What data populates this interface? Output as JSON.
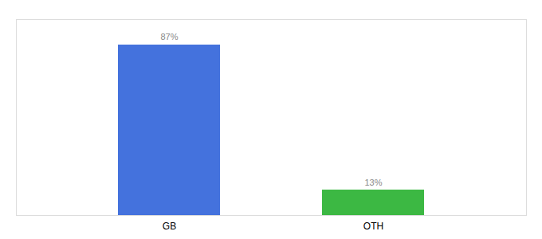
{
  "chart_data": {
    "type": "bar",
    "categories": [
      "GB",
      "OTH"
    ],
    "values": [
      87,
      13
    ],
    "value_labels": [
      "87%",
      "13%"
    ],
    "colors": [
      "#4472DD",
      "#3CB843"
    ],
    "ylim": [
      0,
      100
    ],
    "data_labels": true,
    "tick_labels": "x",
    "grid": false
  }
}
